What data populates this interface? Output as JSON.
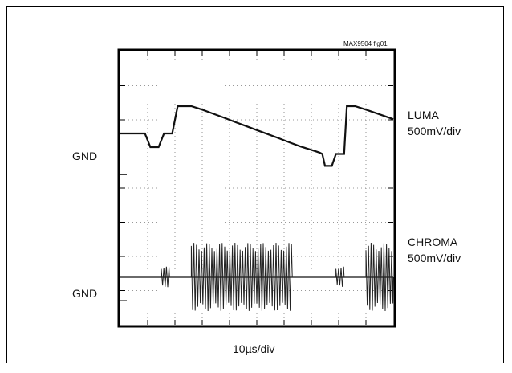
{
  "figure_id": "MAX9504 fig01",
  "chart_data": {
    "type": "line",
    "title": "",
    "xlabel": "10µs/div",
    "grid": true,
    "divisions": {
      "x": 10,
      "y": 8
    },
    "traces": [
      {
        "name": "LUMA",
        "scale": "500mV/div",
        "ground_label": "GND",
        "ground_div": 3.6,
        "points": [
          [
            0,
            1.0
          ],
          [
            0.3,
            1.0
          ],
          [
            0.9,
            1.0
          ],
          [
            1.1,
            0.6
          ],
          [
            1.4,
            0.6
          ],
          [
            1.6,
            1.0
          ],
          [
            1.9,
            1.0
          ],
          [
            2.1,
            1.8
          ],
          [
            2.6,
            1.8
          ],
          [
            3.0,
            1.7
          ],
          [
            3.4,
            1.58
          ],
          [
            3.8,
            1.46
          ],
          [
            4.2,
            1.34
          ],
          [
            4.6,
            1.22
          ],
          [
            5.0,
            1.1
          ],
          [
            5.4,
            0.98
          ],
          [
            5.8,
            0.86
          ],
          [
            6.2,
            0.74
          ],
          [
            6.6,
            0.62
          ],
          [
            7.0,
            0.52
          ],
          [
            7.3,
            0.44
          ],
          [
            7.4,
            0.4
          ],
          [
            7.5,
            0.05
          ],
          [
            7.75,
            0.05
          ],
          [
            7.9,
            0.4
          ],
          [
            8.2,
            0.4
          ],
          [
            8.3,
            1.8
          ],
          [
            8.6,
            1.8
          ],
          [
            9.0,
            1.7
          ],
          [
            9.5,
            1.56
          ],
          [
            10,
            1.42
          ]
        ]
      },
      {
        "name": "CHROMA",
        "scale": "500mV/div",
        "ground_label": "GND",
        "ground_div": 7.3,
        "baseline_div": 0.5,
        "bursts": [
          {
            "start": 1.5,
            "end": 1.8,
            "amplitude_div": 0.3
          },
          {
            "start": 2.6,
            "end": 6.3,
            "amplitude_div": 1.0
          },
          {
            "start": 7.9,
            "end": 8.2,
            "amplitude_div": 0.3
          },
          {
            "start": 9.0,
            "end": 10.0,
            "amplitude_div": 1.0
          }
        ]
      }
    ]
  }
}
